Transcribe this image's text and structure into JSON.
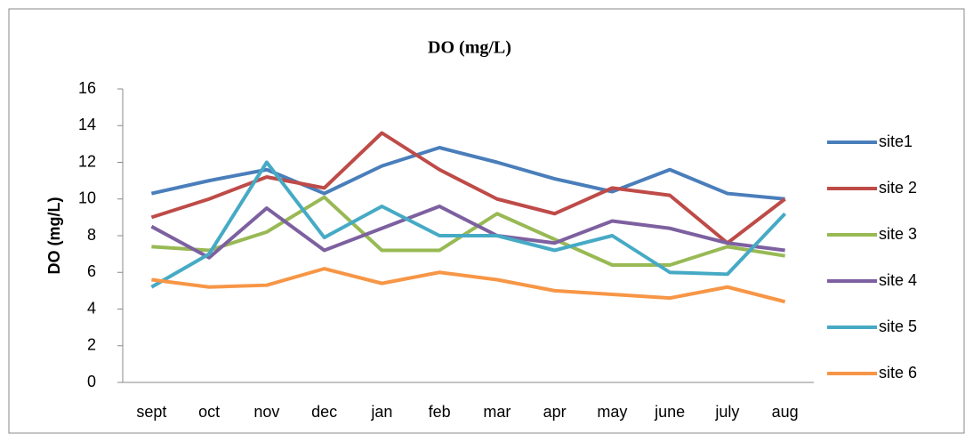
{
  "chart_data": {
    "type": "line",
    "title": "DO (mg/L)",
    "y_label": "DO (mg/L)",
    "categories": [
      "sept",
      "oct",
      "nov",
      "dec",
      "jan",
      "feb",
      "mar",
      "apr",
      "may",
      "june",
      "july",
      "aug"
    ],
    "series": [
      {
        "name": "site1",
        "color": "#4a7ebb",
        "values": [
          10.3,
          11.0,
          11.6,
          10.3,
          11.8,
          12.8,
          12.0,
          11.1,
          10.4,
          11.6,
          10.3,
          10.0
        ]
      },
      {
        "name": "site 2",
        "color": "#be4b48",
        "values": [
          9.0,
          10.0,
          11.2,
          10.6,
          13.6,
          11.6,
          10.0,
          9.2,
          10.6,
          10.2,
          7.6,
          10.0
        ]
      },
      {
        "name": "site 3",
        "color": "#98b954",
        "values": [
          7.4,
          7.2,
          8.2,
          10.1,
          7.2,
          7.2,
          9.2,
          7.8,
          6.4,
          6.4,
          7.4,
          6.9
        ]
      },
      {
        "name": "site 4",
        "color": "#7d60a0",
        "values": [
          8.5,
          6.8,
          9.5,
          7.2,
          8.4,
          9.6,
          8.0,
          7.6,
          8.8,
          8.4,
          7.6,
          7.2
        ]
      },
      {
        "name": "site 5",
        "color": "#46aac5",
        "values": [
          5.2,
          7.0,
          12.0,
          7.9,
          9.6,
          8.0,
          8.0,
          7.2,
          8.0,
          6.0,
          5.9,
          9.2
        ]
      },
      {
        "name": "site 6",
        "color": "#f79646",
        "values": [
          5.6,
          5.2,
          5.3,
          6.2,
          5.4,
          6.0,
          5.6,
          5.0,
          4.8,
          4.6,
          5.2,
          4.4
        ]
      }
    ],
    "ylim": [
      0,
      16
    ],
    "yticks": [
      0,
      2,
      4,
      6,
      8,
      10,
      12,
      14,
      16
    ],
    "grid": false,
    "legend": "right"
  }
}
